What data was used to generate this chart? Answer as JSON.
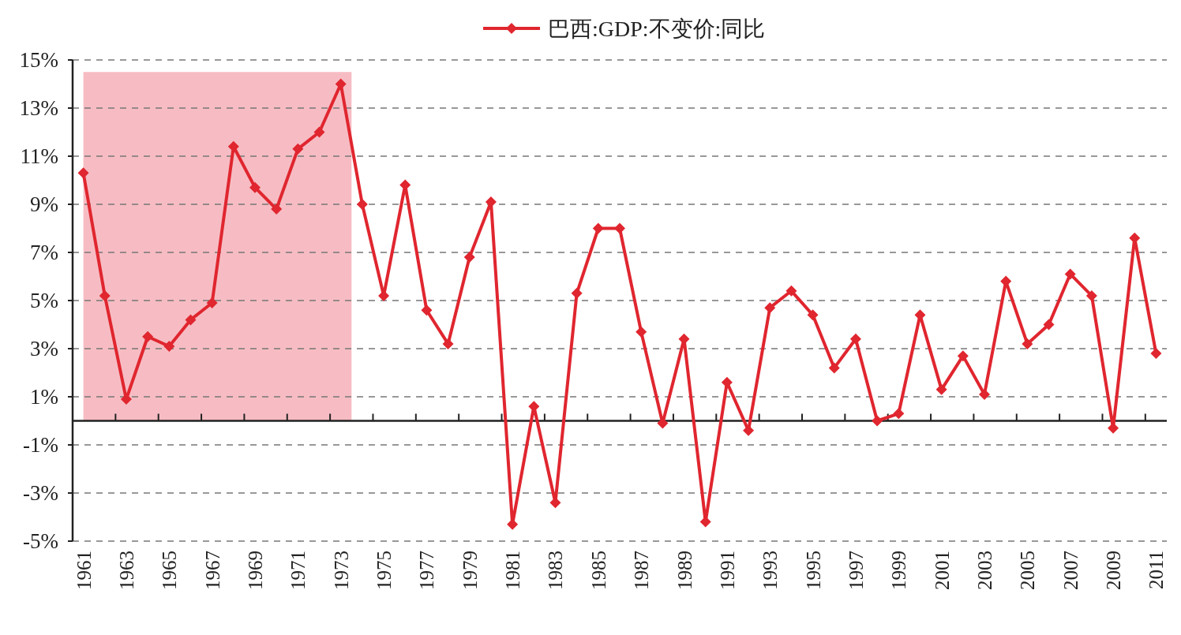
{
  "chart_data": {
    "type": "line",
    "categories": [
      "1961",
      null,
      "1963",
      null,
      "1965",
      null,
      "1967",
      null,
      "1969",
      null,
      "1971",
      null,
      "1973",
      null,
      "1975",
      null,
      "1977",
      null,
      "1979",
      null,
      "1981",
      null,
      "1983",
      null,
      "1985",
      null,
      "1987",
      null,
      "1989",
      null,
      "1991",
      null,
      "1993",
      null,
      "1995",
      null,
      "1997",
      null,
      "1999",
      null,
      "2001",
      null,
      "2003",
      null,
      "2005",
      null,
      "2007",
      null,
      "2009",
      null,
      "2011"
    ],
    "series": [
      {
        "name": "巴西:GDP:不变价:同比",
        "color": "#e0262f",
        "values": [
          10.3,
          5.2,
          0.9,
          3.5,
          3.1,
          4.2,
          4.9,
          11.4,
          9.7,
          8.8,
          11.3,
          12.0,
          14.0,
          9.0,
          5.2,
          9.8,
          4.6,
          3.2,
          6.8,
          9.1,
          -4.3,
          0.6,
          -3.4,
          5.3,
          8.0,
          8.0,
          3.7,
          -0.1,
          3.4,
          -4.2,
          1.6,
          -0.4,
          4.7,
          5.4,
          4.4,
          2.2,
          3.4,
          0.0,
          0.3,
          4.4,
          1.3,
          2.7,
          1.1,
          5.8,
          3.2,
          4.0,
          6.1,
          5.2,
          -0.3,
          7.6,
          2.8
        ]
      }
    ],
    "ylim": [
      -5,
      15
    ],
    "yticks": [
      {
        "value": -5,
        "label": "-5%"
      },
      {
        "value": -3,
        "label": "-3%"
      },
      {
        "value": -1,
        "label": "-1%"
      },
      {
        "value": 1,
        "label": "1%"
      },
      {
        "value": 3,
        "label": "3%"
      },
      {
        "value": 5,
        "label": "5%"
      },
      {
        "value": 7,
        "label": "7%"
      },
      {
        "value": 9,
        "label": "9%"
      },
      {
        "value": 11,
        "label": "11%"
      },
      {
        "value": 13,
        "label": "13%"
      },
      {
        "value": 15,
        "label": "15%"
      }
    ],
    "grid": "y",
    "legend": "top",
    "marker": "diamond",
    "line_style": "solid",
    "bands": [
      {
        "axis": "x",
        "from": "1961",
        "to": "1973",
        "color": "#f7bcc3"
      }
    ]
  }
}
